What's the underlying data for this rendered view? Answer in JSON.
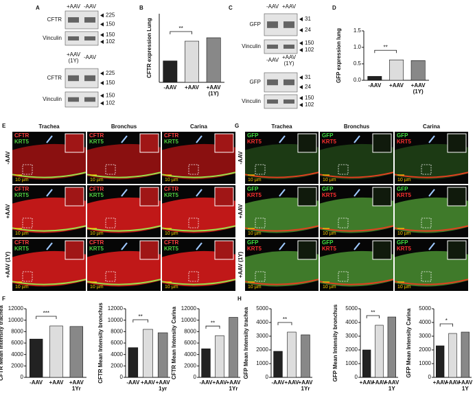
{
  "blots": [
    {
      "label": "A",
      "groups": [
        {
          "lanes": [
            "+AAV",
            "-AAV"
          ],
          "rows": [
            {
              "name": "CFTR",
              "markers": [
                225,
                150
              ]
            },
            {
              "name": "Vinculin",
              "markers": [
                150,
                102
              ]
            }
          ]
        },
        {
          "lanes": [
            "+AAV (1Y)",
            "-AAV"
          ],
          "rows": [
            {
              "name": "CFTR",
              "markers": [
                225,
                150
              ]
            },
            {
              "name": "Vinculin",
              "markers": [
                150,
                102
              ]
            }
          ]
        }
      ]
    },
    {
      "label": "C",
      "groups": [
        {
          "lanes": [
            "-AAV",
            "+AAV"
          ],
          "rows": [
            {
              "name": "GFP",
              "markers": [
                31,
                24
              ]
            },
            {
              "name": "Vinculin",
              "markers": [
                150,
                102
              ]
            }
          ]
        },
        {
          "lanes": [
            "-AAV",
            "+AAV (1Y)"
          ],
          "rows": [
            {
              "name": "GFP",
              "markers": [
                31,
                24
              ]
            },
            {
              "name": "Vinculin",
              "markers": [
                150,
                102
              ]
            }
          ]
        }
      ]
    }
  ],
  "micrographs": [
    {
      "label": "E",
      "columns": [
        "Trachea",
        "Bronchus",
        "Carina"
      ],
      "rows": [
        "-AAV",
        "+AAV",
        "+AAV (1Y)"
      ],
      "stains": [
        "CFTR",
        "KRT5"
      ],
      "scale": "10 µm"
    },
    {
      "label": "G",
      "columns": [
        "Trachea",
        "Bronchus",
        "Carina"
      ],
      "rows": [
        "-AAV",
        "+AAV",
        "+AAV (1Y)"
      ],
      "stains": [
        "GFP",
        "KRT5"
      ],
      "scale": "10 µm"
    }
  ],
  "chart_data": [
    {
      "type": "bar",
      "label": "B",
      "ylabel": "CFTR expression Lung",
      "categories": [
        "-AAV",
        "+AAV",
        "+AAV (1Y)"
      ],
      "values": [
        0.25,
        0.48,
        0.52
      ],
      "colors": [
        "#222222",
        "#dddddd",
        "#888888"
      ],
      "ylim": [
        0,
        0.8
      ],
      "annotation": "**"
    },
    {
      "type": "bar",
      "label": "D",
      "ylabel": "GFP expression lung",
      "categories": [
        "-AAV",
        "+AAV",
        "+AAV (1Y)"
      ],
      "values": [
        0.12,
        0.62,
        0.6
      ],
      "colors": [
        "#222222",
        "#dddddd",
        "#888888"
      ],
      "ylim": [
        0,
        1.5
      ],
      "yticks": [
        {
          "value": 0,
          "label": "0.0"
        },
        0.5,
        {
          "value": 1,
          "label": "1.0"
        },
        1.5
      ],
      "annotation": "**"
    },
    {
      "type": "bar",
      "label": "F",
      "ylabel": "CFTR Mean Intensity trachea",
      "categories": [
        "-AAV",
        "+AAV",
        "+AAV 1Yr"
      ],
      "values": [
        6700,
        9000,
        8900
      ],
      "colors": [
        "#222222",
        "#dddddd",
        "#888888"
      ],
      "ylim": [
        0,
        12000
      ],
      "yticks": [
        0,
        2000,
        4000,
        6000,
        8000,
        10000,
        12000
      ],
      "annotation": "***"
    },
    {
      "type": "bar",
      "ylabel": "CFTR Mean Intensity bronchus",
      "categories": [
        "-AAV",
        "+AAV",
        "+AAV 1yr"
      ],
      "values": [
        5200,
        8400,
        7800
      ],
      "colors": [
        "#222222",
        "#dddddd",
        "#888888"
      ],
      "ylim": [
        0,
        12000
      ],
      "yticks": [
        0,
        2000,
        4000,
        6000,
        8000,
        10000,
        12000
      ],
      "annotation": "**"
    },
    {
      "type": "bar",
      "ylabel": "CFTR Mean Intensity Carina",
      "categories": [
        "-AAV",
        "+AAV",
        "+AAV 1Yr"
      ],
      "values": [
        5000,
        7300,
        10500
      ],
      "colors": [
        "#222222",
        "#dddddd",
        "#888888"
      ],
      "ylim": [
        0,
        12000
      ],
      "yticks": [
        0,
        2000,
        4000,
        6000,
        8000,
        10000,
        12000
      ],
      "annotation": "**"
    },
    {
      "type": "bar",
      "label": "H",
      "ylabel": "GFP Mean Intensity trachea",
      "categories": [
        "-AAV",
        "+AAV",
        "+AAV 1Yr"
      ],
      "values": [
        1900,
        3300,
        3100
      ],
      "colors": [
        "#222222",
        "#dddddd",
        "#888888"
      ],
      "ylim": [
        0,
        5000
      ],
      "yticks": [
        0,
        1000,
        2000,
        3000,
        4000,
        5000
      ],
      "annotation": "**"
    },
    {
      "type": "bar",
      "ylabel": "GFP Mean Intensity bronchus",
      "categories": [
        "+AAV",
        "+AAV",
        "+AAV 1Y"
      ],
      "values": [
        2000,
        3800,
        4400
      ],
      "colors": [
        "#222222",
        "#dddddd",
        "#888888"
      ],
      "ylim": [
        0,
        5000
      ],
      "yticks": [
        0,
        1000,
        2000,
        3000,
        4000,
        5000
      ],
      "annotation": "**"
    },
    {
      "type": "bar",
      "ylabel": "GFP Mean Intensity Carina",
      "categories": [
        "+AAV",
        "+AAV",
        "+AAV 1Y"
      ],
      "values": [
        2300,
        3200,
        3300
      ],
      "colors": [
        "#222222",
        "#dddddd",
        "#888888"
      ],
      "ylim": [
        0,
        5000
      ],
      "yticks": [
        0,
        1000,
        2000,
        3000,
        4000,
        5000
      ],
      "annotation": "*"
    }
  ]
}
